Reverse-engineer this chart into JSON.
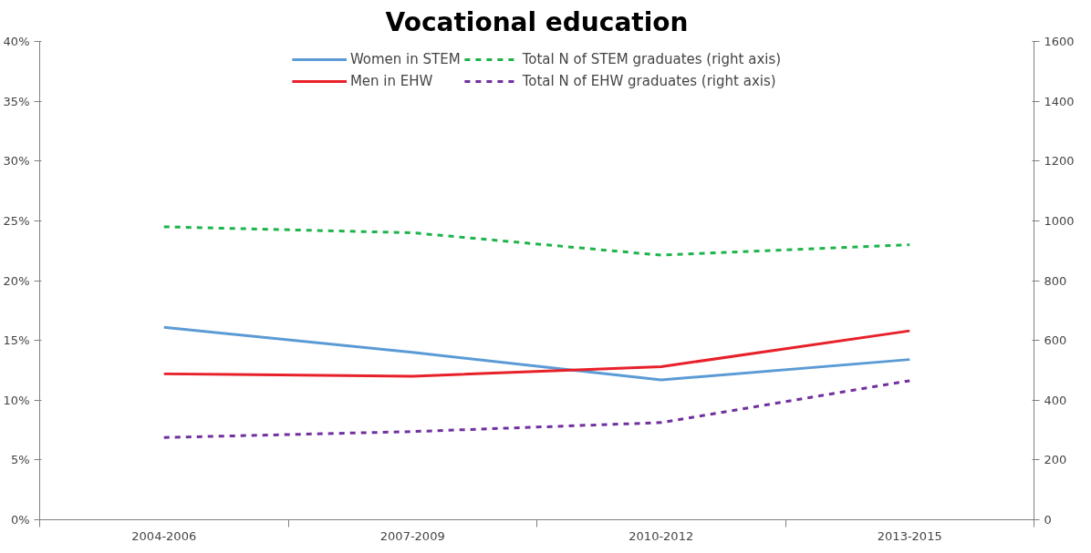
{
  "chart_data": {
    "type": "line",
    "title": "Vocational education",
    "categories": [
      "2004-2006",
      "2007-2009",
      "2010-2012",
      "2013-2015"
    ],
    "series": [
      {
        "name": "Women in STEM",
        "color": "#5b9bd5",
        "values": [
          16.1,
          14.0,
          11.7,
          13.4
        ],
        "line_style": "solid"
      },
      {
        "name": "Men in EHW",
        "color": "#e8202a",
        "values": [
          12.2,
          12.0,
          12.8,
          15.8
        ],
        "line_style": "solid"
      },
      {
        "name": "Total N of STEM graduates (right axis)",
        "color": "#1eb44a",
        "values": [
          980,
          960,
          885,
          920
        ],
        "line_style": "dashed",
        "axis": "y2"
      },
      {
        "name": "Total N of EHW graduates (right axis)",
        "color": "#7030a0",
        "values": [
          275,
          295,
          325,
          465
        ],
        "line_style": "dashed",
        "axis": "y2"
      }
    ],
    "ylim": [
      0,
      40
    ],
    "yticks": [
      {
        "value": 0,
        "label": "0%"
      },
      {
        "value": 5,
        "label": "5%"
      },
      {
        "value": 10,
        "label": "10%"
      },
      {
        "value": 15,
        "label": "15%"
      },
      {
        "value": 20,
        "label": "20%"
      },
      {
        "value": 25,
        "label": "25%"
      },
      {
        "value": 30,
        "label": "30%"
      },
      {
        "value": 35,
        "label": "35%"
      },
      {
        "value": 40,
        "label": "40%"
      }
    ],
    "y2lim": [
      0,
      1600
    ],
    "y2ticks": [
      0,
      200,
      400,
      600,
      800,
      1000,
      1200,
      1400,
      1600
    ],
    "legend": "top",
    "grid": false,
    "marker": "none"
  }
}
